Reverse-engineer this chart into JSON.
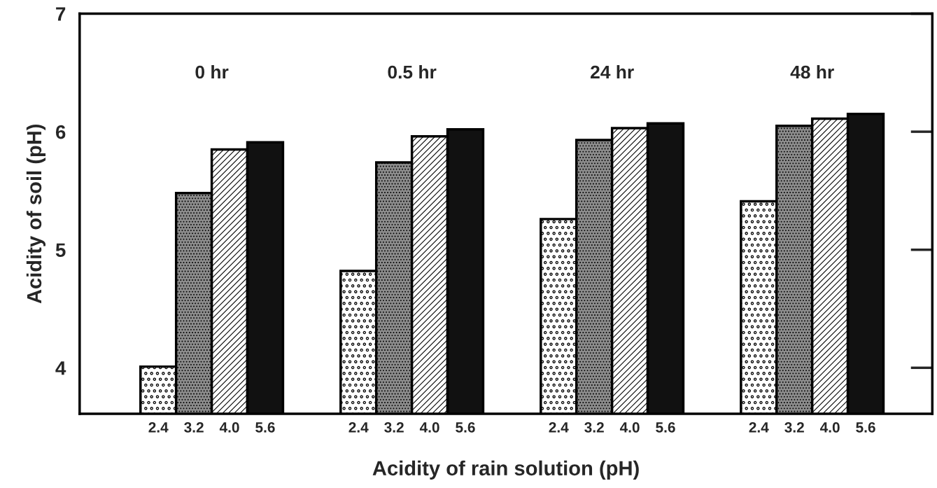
{
  "chart_data": {
    "type": "bar",
    "categories": [
      "0 hr",
      "0.5 hr",
      "24 hr",
      "48 hr"
    ],
    "series": [
      {
        "name": "2.4",
        "color": "#ffffff",
        "values": [
          4.01,
          4.82,
          5.26,
          5.41
        ]
      },
      {
        "name": "3.2",
        "color": "#8c8c8c",
        "values": [
          5.48,
          5.74,
          5.93,
          6.05
        ]
      },
      {
        "name": "4.0",
        "color": "#ffffff",
        "values": [
          5.85,
          5.96,
          6.03,
          6.11
        ]
      },
      {
        "name": "5.6",
        "color": "#111111",
        "values": [
          5.91,
          6.02,
          6.07,
          6.15
        ]
      }
    ],
    "xlabel": "Acidity of rain solution (pH)",
    "ylabel": "Acidity of soil (pH)",
    "ylim": [
      3.61,
      7
    ],
    "yticks": [
      4,
      5,
      6,
      7
    ],
    "grid": false,
    "legend": false
  }
}
